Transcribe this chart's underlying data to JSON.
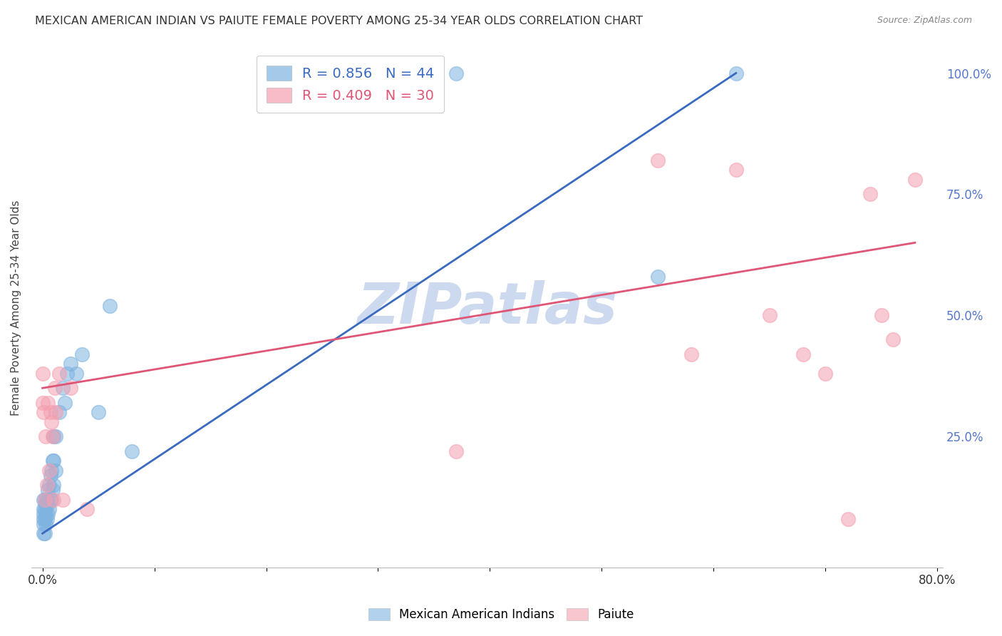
{
  "title": "MEXICAN AMERICAN INDIAN VS PAIUTE FEMALE POVERTY AMONG 25-34 YEAR OLDS CORRELATION CHART",
  "source": "Source: ZipAtlas.com",
  "ylabel": "Female Poverty Among 25-34 Year Olds",
  "watermark": "ZIPatlas",
  "legend_blue_label": "Mexican American Indians",
  "legend_pink_label": "Paiute",
  "blue_R": 0.856,
  "blue_N": 44,
  "pink_R": 0.409,
  "pink_N": 30,
  "x_min": 0.0,
  "x_max": 0.8,
  "y_min": 0.0,
  "y_max": 1.05,
  "y_ticks_right": [
    0.25,
    0.5,
    0.75,
    1.0
  ],
  "y_tick_labels_right": [
    "25.0%",
    "50.0%",
    "75.0%",
    "100.0%"
  ],
  "blue_color": "#7fb3e0",
  "pink_color": "#f4a0b0",
  "blue_line_color": "#3a6abf",
  "pink_line_color": "#e05575",
  "title_color": "#333333",
  "source_color": "#888888",
  "right_label_color": "#5577cc",
  "watermark_color": "#ccd9ee",
  "grid_color": "#d5d5d5",
  "background_color": "#ffffff",
  "blue_x": [
    0.001,
    0.001,
    0.001,
    0.001,
    0.001,
    0.001,
    0.002,
    0.002,
    0.002,
    0.002,
    0.003,
    0.003,
    0.003,
    0.004,
    0.004,
    0.005,
    0.005,
    0.005,
    0.006,
    0.006,
    0.007,
    0.007,
    0.008,
    0.008,
    0.009,
    0.009,
    0.01,
    0.01,
    0.01,
    0.012,
    0.012,
    0.015,
    0.018,
    0.02,
    0.022,
    0.025,
    0.03,
    0.035,
    0.05,
    0.06,
    0.08,
    0.37,
    0.55,
    0.62
  ],
  "blue_y": [
    0.05,
    0.07,
    0.08,
    0.09,
    0.1,
    0.12,
    0.05,
    0.08,
    0.1,
    0.12,
    0.07,
    0.09,
    0.11,
    0.08,
    0.12,
    0.09,
    0.11,
    0.14,
    0.1,
    0.15,
    0.12,
    0.17,
    0.12,
    0.18,
    0.14,
    0.2,
    0.15,
    0.2,
    0.25,
    0.18,
    0.25,
    0.3,
    0.35,
    0.32,
    0.38,
    0.4,
    0.38,
    0.42,
    0.3,
    0.52,
    0.22,
    1.0,
    0.58,
    1.0
  ],
  "pink_x": [
    0.0,
    0.0,
    0.001,
    0.002,
    0.003,
    0.004,
    0.005,
    0.006,
    0.007,
    0.008,
    0.009,
    0.01,
    0.011,
    0.012,
    0.015,
    0.018,
    0.025,
    0.04,
    0.37,
    0.55,
    0.58,
    0.62,
    0.65,
    0.68,
    0.7,
    0.72,
    0.74,
    0.75,
    0.76,
    0.78
  ],
  "pink_y": [
    0.32,
    0.38,
    0.3,
    0.12,
    0.25,
    0.15,
    0.32,
    0.18,
    0.3,
    0.28,
    0.25,
    0.12,
    0.35,
    0.3,
    0.38,
    0.12,
    0.35,
    0.1,
    0.22,
    0.82,
    0.42,
    0.8,
    0.5,
    0.42,
    0.38,
    0.08,
    0.75,
    0.5,
    0.45,
    0.78
  ],
  "blue_line_x": [
    0.0,
    0.62
  ],
  "blue_line_y": [
    0.05,
    1.0
  ],
  "pink_line_x": [
    0.0,
    0.78
  ],
  "pink_line_y": [
    0.35,
    0.65
  ]
}
